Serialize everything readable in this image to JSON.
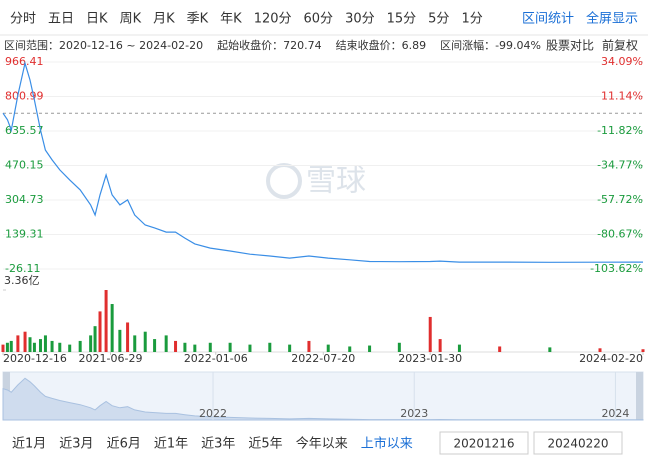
{
  "toolbar": {
    "periods": [
      "分时",
      "五日",
      "日K",
      "周K",
      "月K",
      "季K",
      "年K",
      "120分",
      "60分",
      "30分",
      "15分",
      "5分",
      "1分"
    ],
    "actions": [
      "区间统计",
      "全屏显示"
    ]
  },
  "summary": {
    "range_label": "区间范围：",
    "range_value": "2020-12-16 ~ 2024-02-20",
    "start_label": "起始收盘价：",
    "start_value": "720.74",
    "end_label": "结束收盘价：",
    "end_value": "6.89",
    "change_label": "区间涨幅：",
    "change_value": "-99.04%",
    "compare": "股票对比",
    "adjust": "前复权"
  },
  "watermark": "雪球",
  "chart_data": {
    "type": "line",
    "x": [
      "2020-12-16",
      "2020-12-24",
      "2020-12-31",
      "2021-01-12",
      "2021-01-25",
      "2021-02-03",
      "2021-02-11",
      "2021-02-22",
      "2021-03-03",
      "2021-03-15",
      "2021-03-29",
      "2021-04-16",
      "2021-05-05",
      "2021-05-24",
      "2021-06-01",
      "2021-06-10",
      "2021-06-21",
      "2021-07-02",
      "2021-07-16",
      "2021-07-30",
      "2021-08-12",
      "2021-08-31",
      "2021-09-17",
      "2021-10-08",
      "2021-10-25",
      "2021-11-11",
      "2021-11-29",
      "2021-12-27",
      "2022-02-01",
      "2022-03-09",
      "2022-04-14",
      "2022-05-20",
      "2022-06-24",
      "2022-07-29",
      "2022-09-06",
      "2022-10-12",
      "2022-12-05",
      "2023-01-30",
      "2023-02-17",
      "2023-03-24",
      "2023-06-05",
      "2023-09-04",
      "2023-12-04",
      "2024-02-20"
    ],
    "series": [
      {
        "color": "#3a8ee6",
        "values": [
          720.74,
          690,
          640,
          808,
          960,
          880,
          784,
          640,
          544,
          497,
          449,
          401,
          353,
          281,
          233,
          329,
          425,
          329,
          281,
          305,
          233,
          185,
          171,
          151,
          151,
          122,
          94,
          74,
          60,
          45,
          36,
          26,
          36,
          26,
          18,
          10,
          9,
          10,
          12,
          7,
          7,
          6,
          6.5,
          6.89
        ]
      }
    ],
    "xlim": [
      "2020-12-16",
      "2024-02-20"
    ],
    "xticks": [
      "2020-12-16",
      "2021-06-29",
      "2022-01-06",
      "2022-07-20",
      "2023-01-30",
      "2024-02-20"
    ],
    "ylim": [
      -26.11,
      966.41
    ],
    "yticks": [
      966.41,
      800.99,
      635.57,
      470.15,
      304.73,
      139.31,
      -26.11
    ],
    "y2lim": [
      -103.62,
      34.09
    ],
    "y2ticks": [
      {
        "value": 34.09,
        "label": "34.09%"
      },
      {
        "value": 11.14,
        "label": "11.14%"
      },
      {
        "value": -11.82,
        "label": "-11.82%"
      },
      {
        "value": -34.77,
        "label": "-34.77%"
      },
      {
        "value": -57.72,
        "label": "-57.72%"
      },
      {
        "value": -80.67,
        "label": "-80.67%"
      },
      {
        "value": -103.62,
        "label": "-103.62%"
      }
    ],
    "reference_line": 720.74,
    "up_color": "#e02e2e",
    "down_color": "#1a9b3d",
    "grid": true,
    "volume": {
      "values": [
        0.4,
        0.5,
        0.6,
        0.9,
        1.1,
        0.8,
        0.5,
        0.7,
        0.9,
        0.6,
        0.5,
        0.4,
        0.6,
        0.9,
        1.4,
        2.2,
        3.36,
        2.6,
        1.2,
        1.6,
        0.9,
        1.1,
        0.7,
        0.9,
        0.6,
        0.5,
        0.4,
        0.5,
        0.5,
        0.4,
        0.5,
        0.4,
        0.6,
        0.4,
        0.3,
        0.35,
        0.5,
        1.9,
        0.7,
        0.4,
        0.3,
        0.25,
        0.2,
        0.15
      ],
      "ylim": [
        0,
        3.36
      ],
      "yticks": [
        {
          "value": 3.36,
          "label": "3.36亿"
        }
      ]
    }
  },
  "navigator": {
    "years": [
      "2022",
      "2023",
      "2024"
    ]
  },
  "ranges": [
    {
      "label": "近1月"
    },
    {
      "label": "近3月"
    },
    {
      "label": "近6月"
    },
    {
      "label": "近1年"
    },
    {
      "label": "近3年"
    },
    {
      "label": "近5年"
    },
    {
      "label": "今年以来"
    },
    {
      "label": "上市以来",
      "active": true
    }
  ],
  "inputs": [
    "20201216",
    "20240220"
  ]
}
